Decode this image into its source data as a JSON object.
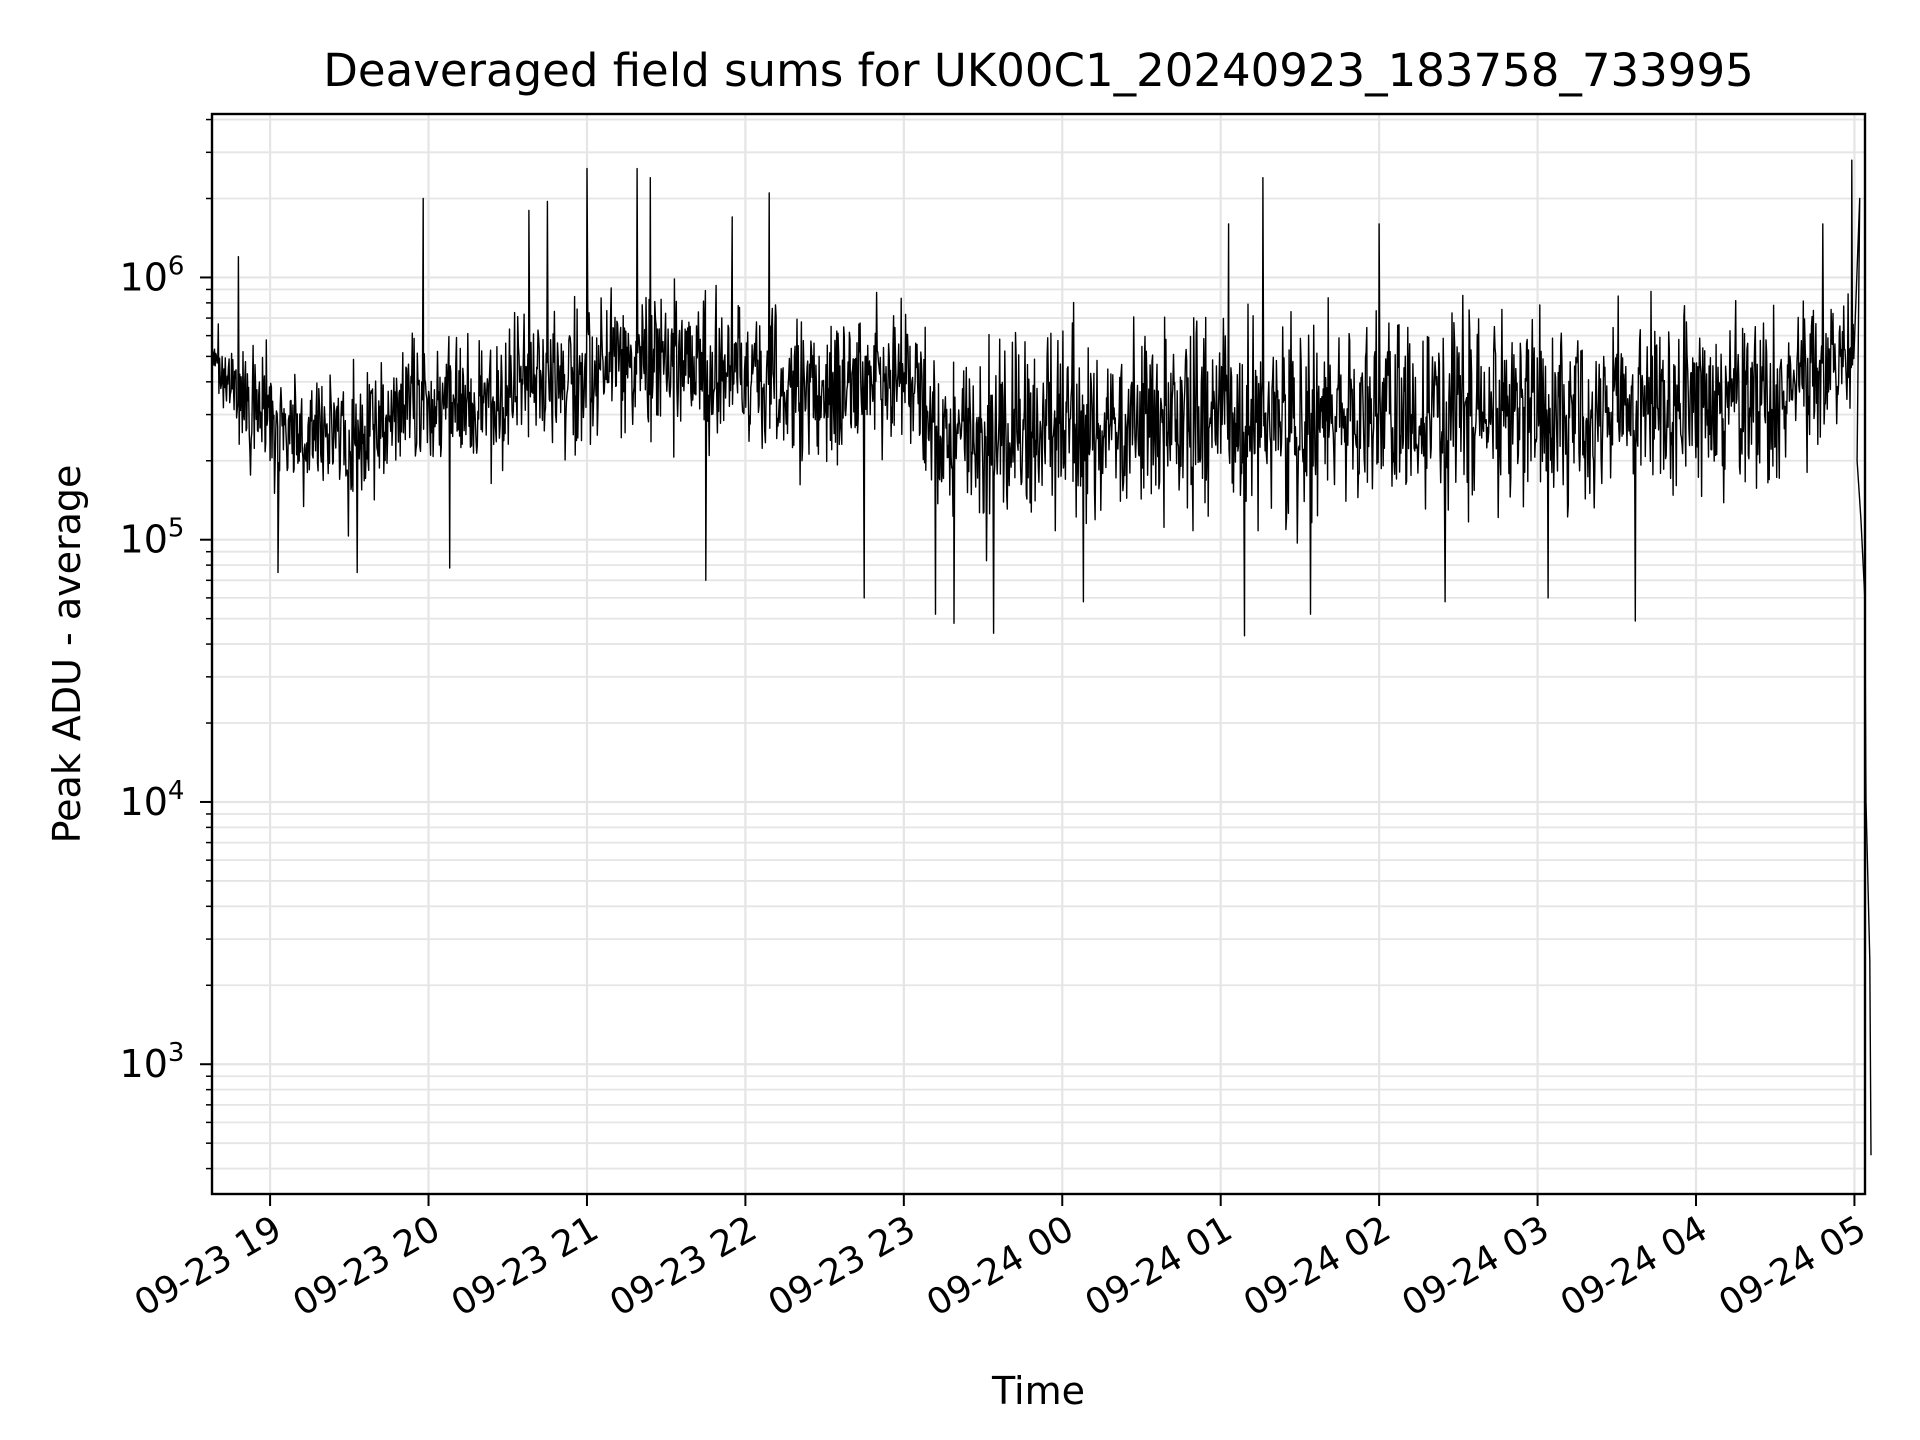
{
  "chart_data": {
    "type": "line",
    "title": "Deaveraged field sums for UK00C1_20240923_183758_733995",
    "xlabel": "Time",
    "ylabel": "Peak ADU - average",
    "yscale": "log",
    "ylim": [
      320,
      4200000
    ],
    "xlim": [
      "2024-09-23 18:38",
      "2024-09-24 05:04"
    ],
    "grid": true,
    "legend": "none",
    "line_color": "#000000",
    "grid_color": "#e5e5e5",
    "x_ticks": [
      {
        "t": "2024-09-23 19:00",
        "label": "09-23 19"
      },
      {
        "t": "2024-09-23 20:00",
        "label": "09-23 20"
      },
      {
        "t": "2024-09-23 21:00",
        "label": "09-23 21"
      },
      {
        "t": "2024-09-23 22:00",
        "label": "09-23 22"
      },
      {
        "t": "2024-09-23 23:00",
        "label": "09-23 23"
      },
      {
        "t": "2024-09-24 00:00",
        "label": "09-24 00"
      },
      {
        "t": "2024-09-24 01:00",
        "label": "09-24 01"
      },
      {
        "t": "2024-09-24 02:00",
        "label": "09-24 02"
      },
      {
        "t": "2024-09-24 03:00",
        "label": "09-24 03"
      },
      {
        "t": "2024-09-24 04:00",
        "label": "09-24 04"
      },
      {
        "t": "2024-09-24 05:00",
        "label": "09-24 05"
      }
    ],
    "y_ticks": [
      {
        "value": 1000,
        "base": "10",
        "exp": "3"
      },
      {
        "value": 10000,
        "base": "10",
        "exp": "4"
      },
      {
        "value": 100000,
        "base": "10",
        "exp": "5"
      },
      {
        "value": 1000000,
        "base": "10",
        "exp": "6"
      }
    ],
    "series": [
      {
        "envelope": [
          {
            "t": "2024-09-23 18:38",
            "low": 400000,
            "high": 750000
          },
          {
            "t": "2024-09-23 18:50",
            "low": 180000,
            "high": 600000
          },
          {
            "t": "2024-09-23 19:10",
            "low": 120000,
            "high": 550000
          },
          {
            "t": "2024-09-23 19:30",
            "low": 110000,
            "high": 450000
          },
          {
            "t": "2024-09-23 19:50",
            "low": 150000,
            "high": 650000
          },
          {
            "t": "2024-09-23 20:10",
            "low": 180000,
            "high": 700000
          },
          {
            "t": "2024-09-23 20:30",
            "low": 160000,
            "high": 800000
          },
          {
            "t": "2024-09-23 21:00",
            "low": 200000,
            "high": 950000
          },
          {
            "t": "2024-09-23 21:30",
            "low": 200000,
            "high": 1100000
          },
          {
            "t": "2024-09-23 22:00",
            "low": 180000,
            "high": 1000000
          },
          {
            "t": "2024-09-23 22:30",
            "low": 150000,
            "high": 900000
          },
          {
            "t": "2024-09-23 23:00",
            "low": 200000,
            "high": 950000
          },
          {
            "t": "2024-09-23 23:15",
            "low": 90000,
            "high": 600000
          },
          {
            "t": "2024-09-23 23:30",
            "low": 70000,
            "high": 700000
          },
          {
            "t": "2024-09-23 23:50",
            "low": 90000,
            "high": 800000
          },
          {
            "t": "2024-09-24 00:10",
            "low": 100000,
            "high": 850000
          },
          {
            "t": "2024-09-24 00:30",
            "low": 100000,
            "high": 800000
          },
          {
            "t": "2024-09-24 01:00",
            "low": 110000,
            "high": 900000
          },
          {
            "t": "2024-09-24 01:30",
            "low": 90000,
            "high": 850000
          },
          {
            "t": "2024-09-24 02:00",
            "low": 100000,
            "high": 900000
          },
          {
            "t": "2024-09-24 02:30",
            "low": 110000,
            "high": 850000
          },
          {
            "t": "2024-09-24 03:00",
            "low": 110000,
            "high": 800000
          },
          {
            "t": "2024-09-24 03:30",
            "low": 120000,
            "high": 850000
          },
          {
            "t": "2024-09-24 04:00",
            "low": 130000,
            "high": 900000
          },
          {
            "t": "2024-09-24 04:30",
            "low": 120000,
            "high": 950000
          },
          {
            "t": "2024-09-24 04:50",
            "low": 200000,
            "high": 1100000
          },
          {
            "t": "2024-09-24 05:00",
            "low": 300000,
            "high": 1000000
          }
        ],
        "spikes_high": [
          {
            "t": "2024-09-23 18:48",
            "value": 1200000
          },
          {
            "t": "2024-09-23 19:58",
            "value": 2000000
          },
          {
            "t": "2024-09-23 20:38",
            "value": 1800000
          },
          {
            "t": "2024-09-23 20:45",
            "value": 1950000
          },
          {
            "t": "2024-09-23 21:00",
            "value": 2600000
          },
          {
            "t": "2024-09-23 21:19",
            "value": 2600000
          },
          {
            "t": "2024-09-23 21:24",
            "value": 2400000
          },
          {
            "t": "2024-09-23 21:55",
            "value": 1700000
          },
          {
            "t": "2024-09-23 22:09",
            "value": 2100000
          },
          {
            "t": "2024-09-24 01:03",
            "value": 1600000
          },
          {
            "t": "2024-09-24 01:16",
            "value": 2400000
          },
          {
            "t": "2024-09-24 02:00",
            "value": 1600000
          },
          {
            "t": "2024-09-24 04:48",
            "value": 1600000
          },
          {
            "t": "2024-09-24 04:59",
            "value": 2800000
          },
          {
            "t": "2024-09-24 05:02",
            "value": 2000000
          }
        ],
        "spikes_low": [
          {
            "t": "2024-09-23 19:03",
            "value": 75000
          },
          {
            "t": "2024-09-23 19:33",
            "value": 75000
          },
          {
            "t": "2024-09-23 20:08",
            "value": 78000
          },
          {
            "t": "2024-09-23 21:45",
            "value": 70000
          },
          {
            "t": "2024-09-23 22:45",
            "value": 60000
          },
          {
            "t": "2024-09-23 23:12",
            "value": 52000
          },
          {
            "t": "2024-09-23 23:19",
            "value": 48000
          },
          {
            "t": "2024-09-23 23:34",
            "value": 44000
          },
          {
            "t": "2024-09-24 00:08",
            "value": 58000
          },
          {
            "t": "2024-09-24 01:09",
            "value": 43000
          },
          {
            "t": "2024-09-24 01:34",
            "value": 52000
          },
          {
            "t": "2024-09-24 02:25",
            "value": 58000
          },
          {
            "t": "2024-09-24 03:04",
            "value": 60000
          },
          {
            "t": "2024-09-24 03:37",
            "value": 49000
          }
        ],
        "tail": [
          {
            "t": "2024-09-24 05:01",
            "value": 200000
          },
          {
            "t": "2024-09-24 05:02",
            "value": 120000
          },
          {
            "t": "2024-09-24 05:03",
            "value": 60000
          },
          {
            "t": "2024-09-24 05:03",
            "value": 10000
          },
          {
            "t": "2024-09-24 05:04",
            "value": 2500
          },
          {
            "t": "2024-09-24 05:04",
            "value": 450
          }
        ]
      }
    ]
  }
}
